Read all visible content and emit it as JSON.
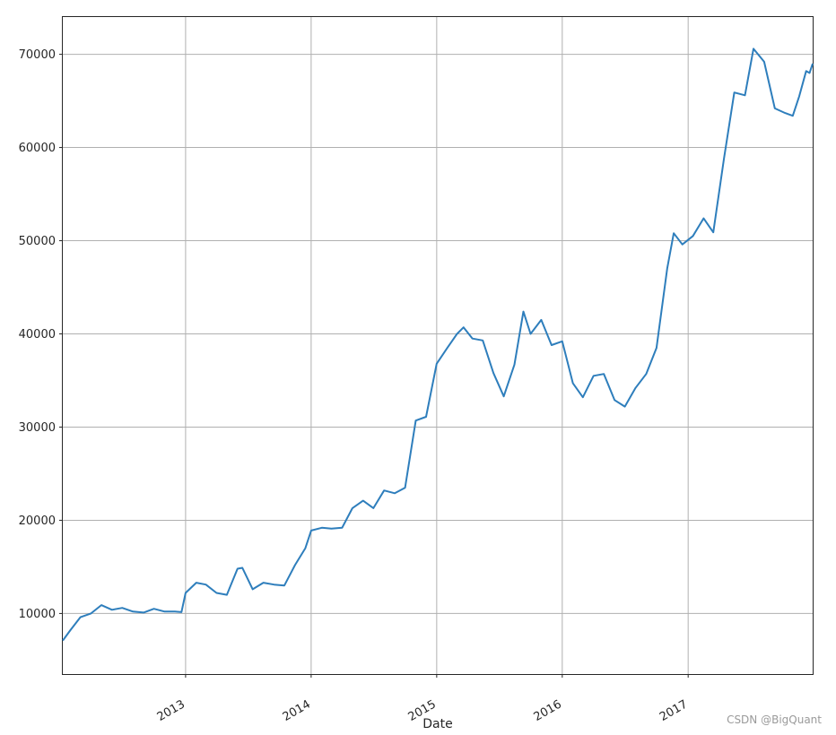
{
  "chart_data": {
    "type": "line",
    "title": "",
    "xlabel": "Date",
    "ylabel": "",
    "grid": true,
    "x_range": [
      "2012-01-10",
      "2017-12-29"
    ],
    "ylim": [
      3500,
      74000
    ],
    "x_ticks": [
      "2013",
      "2014",
      "2015",
      "2016",
      "2017"
    ],
    "y_ticks": [
      "10000",
      "20000",
      "30000",
      "40000",
      "50000",
      "60000",
      "70000"
    ],
    "line_color": "#2e7ebc",
    "series": [
      {
        "name": "",
        "points": [
          [
            "2012-01-10",
            7100
          ],
          [
            "2012-02-01",
            8200
          ],
          [
            "2012-03-01",
            9600
          ],
          [
            "2012-04-01",
            10000
          ],
          [
            "2012-05-01",
            10900
          ],
          [
            "2012-06-01",
            10400
          ],
          [
            "2012-07-01",
            10600
          ],
          [
            "2012-08-01",
            10200
          ],
          [
            "2012-09-01",
            10100
          ],
          [
            "2012-10-01",
            10500
          ],
          [
            "2012-11-01",
            10200
          ],
          [
            "2012-12-01",
            10200
          ],
          [
            "2012-12-20",
            10150
          ],
          [
            "2013-01-01",
            12200
          ],
          [
            "2013-02-01",
            13300
          ],
          [
            "2013-03-01",
            13100
          ],
          [
            "2013-04-01",
            12200
          ],
          [
            "2013-05-01",
            12000
          ],
          [
            "2013-06-01",
            14800
          ],
          [
            "2013-06-15",
            14900
          ],
          [
            "2013-07-15",
            12600
          ],
          [
            "2013-08-15",
            13300
          ],
          [
            "2013-09-15",
            13100
          ],
          [
            "2013-10-15",
            13000
          ],
          [
            "2013-11-15",
            15200
          ],
          [
            "2013-12-15",
            17000
          ],
          [
            "2014-01-01",
            18900
          ],
          [
            "2014-02-01",
            19200
          ],
          [
            "2014-03-01",
            19100
          ],
          [
            "2014-04-01",
            19200
          ],
          [
            "2014-05-01",
            21300
          ],
          [
            "2014-06-01",
            22100
          ],
          [
            "2014-07-01",
            21300
          ],
          [
            "2014-08-01",
            23200
          ],
          [
            "2014-09-01",
            22900
          ],
          [
            "2014-10-01",
            23500
          ],
          [
            "2014-11-01",
            30700
          ],
          [
            "2014-12-01",
            31100
          ],
          [
            "2015-01-01",
            36800
          ],
          [
            "2015-02-01",
            38500
          ],
          [
            "2015-03-01",
            40000
          ],
          [
            "2015-03-20",
            40700
          ],
          [
            "2015-04-15",
            39500
          ],
          [
            "2015-05-15",
            39300
          ],
          [
            "2015-06-15",
            35800
          ],
          [
            "2015-07-15",
            33300
          ],
          [
            "2015-08-15",
            36700
          ],
          [
            "2015-09-10",
            42400
          ],
          [
            "2015-10-01",
            40000
          ],
          [
            "2015-11-01",
            41500
          ],
          [
            "2015-12-01",
            38800
          ],
          [
            "2016-01-01",
            39200
          ],
          [
            "2016-02-01",
            34700
          ],
          [
            "2016-03-01",
            33200
          ],
          [
            "2016-04-01",
            35500
          ],
          [
            "2016-05-01",
            35700
          ],
          [
            "2016-06-01",
            32900
          ],
          [
            "2016-07-01",
            32200
          ],
          [
            "2016-08-01",
            34200
          ],
          [
            "2016-09-01",
            35700
          ],
          [
            "2016-10-01",
            38500
          ],
          [
            "2016-11-01",
            47000
          ],
          [
            "2016-11-20",
            50800
          ],
          [
            "2016-12-15",
            49600
          ],
          [
            "2017-01-15",
            50500
          ],
          [
            "2017-02-15",
            52400
          ],
          [
            "2017-03-15",
            50900
          ],
          [
            "2017-04-15",
            58800
          ],
          [
            "2017-05-15",
            65900
          ],
          [
            "2017-06-15",
            65600
          ],
          [
            "2017-07-10",
            70600
          ],
          [
            "2017-08-10",
            69200
          ],
          [
            "2017-09-10",
            64200
          ],
          [
            "2017-10-10",
            63700
          ],
          [
            "2017-11-01",
            63400
          ],
          [
            "2017-11-20",
            65500
          ],
          [
            "2017-12-10",
            68200
          ],
          [
            "2017-12-20",
            68000
          ],
          [
            "2017-12-29",
            69000
          ]
        ]
      }
    ]
  },
  "watermark": "CSDN @BigQuant"
}
